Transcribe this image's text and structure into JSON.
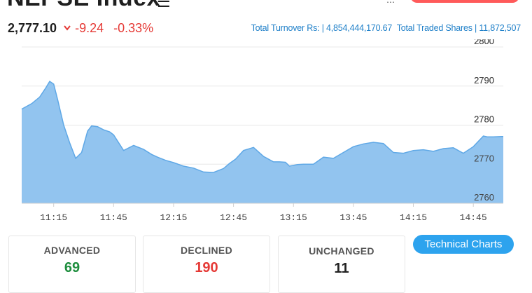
{
  "header": {
    "title": "NEPSE Index",
    "price": "2,777.10",
    "change": "-9.24",
    "change_percent": "-0.33%",
    "turnover_text": "Total Turnover Rs: | 4,854,444,170.67",
    "traded_shares_text": "Total Traded Shares | 11,872,507",
    "colors": {
      "down": "#e53935",
      "link": "#1e7fc8"
    }
  },
  "chart_data": {
    "type": "area",
    "x_tick_labels": [
      "11:15",
      "11:45",
      "12:15",
      "12:45",
      "13:15",
      "13:45",
      "14:15",
      "14:45"
    ],
    "y_tick_labels": [
      "2800",
      "2790",
      "2780",
      "2770",
      "2760"
    ],
    "ylim": [
      2760,
      2800
    ],
    "x_start": "10:59",
    "x_end": "15:00",
    "grid": true,
    "fill_color": "#8cc1ee",
    "line_color": "#5fa8e6",
    "series": [
      {
        "x": [
          "10:59",
          "11:04",
          "11:08",
          "11:11",
          "11:13",
          "11:15",
          "11:17",
          "11:20",
          "11:23",
          "11:26",
          "11:29",
          "11:32",
          "11:34",
          "11:37",
          "11:40",
          "11:43",
          "11:45",
          "11:50",
          "11:55",
          "12:00",
          "12:04",
          "12:07",
          "12:11",
          "12:15",
          "12:20",
          "12:25",
          "12:30",
          "12:35",
          "12:40",
          "12:43",
          "12:46",
          "12:50",
          "12:55",
          "13:00",
          "13:05",
          "13:08",
          "13:11",
          "13:13",
          "13:17",
          "13:20",
          "13:25",
          "13:30",
          "13:35",
          "13:40",
          "13:45",
          "13:50",
          "13:55",
          "14:00",
          "14:05",
          "14:10",
          "14:15",
          "14:20",
          "14:25",
          "14:30",
          "14:35",
          "14:40",
          "14:45",
          "14:50",
          "14:52",
          "14:55",
          "14:59",
          "15:00"
        ],
        "values": [
          2784.1,
          2785.5,
          2787.2,
          2789.5,
          2791.2,
          2790.5,
          2786.5,
          2780.0,
          2775.5,
          2771.5,
          2773.0,
          2778.5,
          2779.8,
          2779.6,
          2778.8,
          2778.3,
          2777.5,
          2773.5,
          2774.8,
          2773.8,
          2772.5,
          2771.8,
          2771.0,
          2770.4,
          2769.5,
          2769.0,
          2768.0,
          2767.9,
          2768.9,
          2770.2,
          2771.3,
          2773.5,
          2774.3,
          2772.0,
          2770.6,
          2770.6,
          2770.5,
          2769.5,
          2769.9,
          2770.0,
          2770.0,
          2771.8,
          2771.5,
          2773.0,
          2774.5,
          2775.2,
          2775.6,
          2775.3,
          2773.0,
          2772.8,
          2773.5,
          2773.7,
          2773.3,
          2774.0,
          2774.2,
          2772.8,
          2774.5,
          2777.2,
          2777.0,
          2777.0,
          2777.1,
          2777.1
        ]
      }
    ]
  },
  "stats": {
    "advanced": {
      "label": "ADVANCED",
      "value": "69",
      "color": "#1e8e3e"
    },
    "declined": {
      "label": "DECLINED",
      "value": "190",
      "color": "#e53935"
    },
    "unchanged": {
      "label": "UNCHANGED",
      "value": "11",
      "color": "#222222"
    }
  },
  "actions": {
    "technical_charts": "Technical Charts"
  }
}
